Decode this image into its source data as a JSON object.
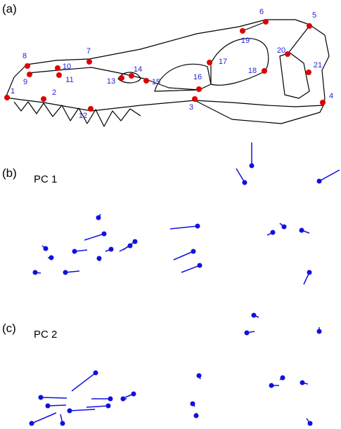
{
  "panels": [
    {
      "label": "(a)",
      "landmarks": [
        "1",
        "2",
        "3",
        "4",
        "5",
        "6",
        "7",
        "8",
        "9",
        "10",
        "11",
        "12",
        "13",
        "14",
        "15",
        "16",
        "17",
        "18",
        "19",
        "20",
        "21"
      ]
    },
    {
      "label": "(b)",
      "title": "PC 1"
    },
    {
      "label": "(c)",
      "title": "PC 2"
    }
  ]
}
